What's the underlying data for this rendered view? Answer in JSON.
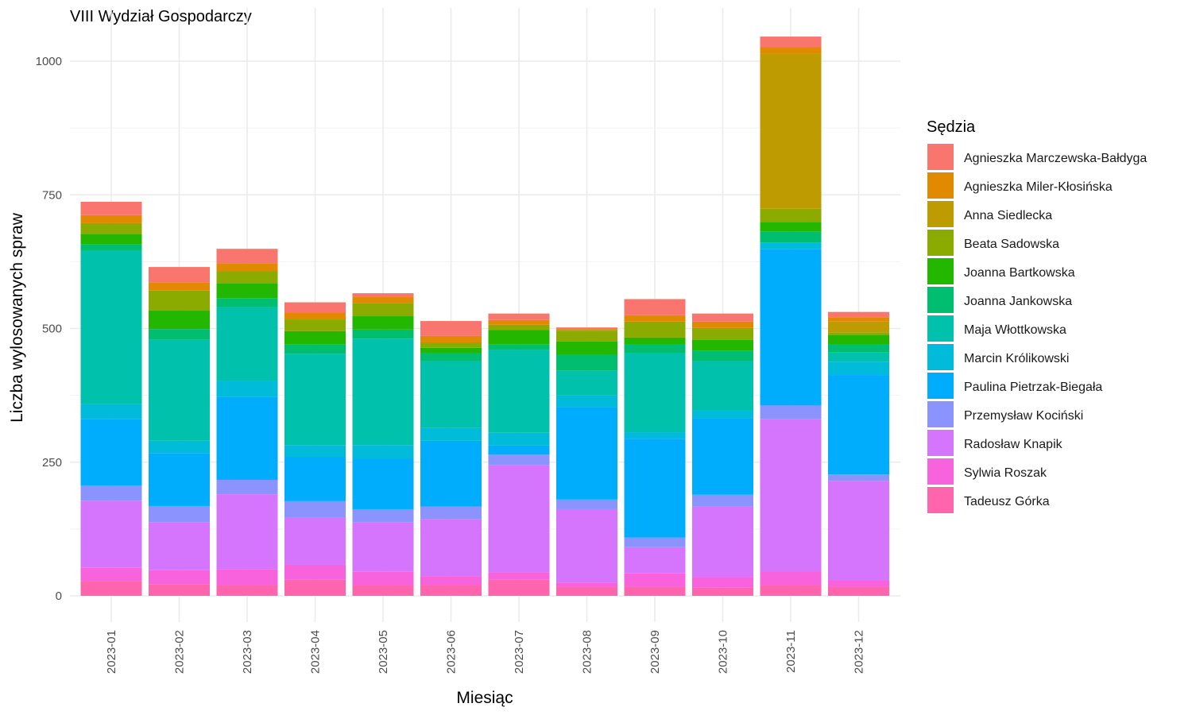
{
  "chart_data": {
    "type": "bar",
    "stacked": true,
    "title": "VIII Wydział Gospodarczy",
    "xlabel": "Miesiąc",
    "ylabel": "Liczba wylosowanych spraw",
    "ylim": [
      -40,
      1060
    ],
    "yticks": [
      0,
      250,
      500,
      750,
      1000
    ],
    "legend_title": "Sędzia",
    "legend_position": "right",
    "grid": true,
    "categories": [
      "2023-01",
      "2023-02",
      "2023-03",
      "2023-04",
      "2023-05",
      "2023-06",
      "2023-07",
      "2023-08",
      "2023-09",
      "2023-10",
      "2023-11",
      "2023-12"
    ],
    "series": [
      {
        "name": "Tadeusz Górka",
        "color": "#FF62BC",
        "values": [
          28,
          22,
          20,
          30,
          20,
          20,
          30,
          17,
          17,
          15,
          20,
          17
        ]
      },
      {
        "name": "Sylwia Roszak",
        "color": "#FC61D5",
        "values": [
          25,
          26,
          30,
          28,
          25,
          17,
          14,
          8,
          25,
          20,
          26,
          12
        ]
      },
      {
        "name": "Radosław Knapik",
        "color": "#DB72FB",
        "values": [
          125,
          90,
          140,
          89,
          92,
          106,
          200,
          137,
          49,
          132,
          285,
          186
        ]
      },
      {
        "name": "Przemysław Kociński",
        "color": "#93AA00",
        "values": [
          28,
          30,
          27,
          30,
          25,
          24,
          20,
          18,
          18,
          22,
          25,
          12
        ]
      },
      {
        "name": "Paulina Pietrzak-Biegała",
        "color": "#00A9FF",
        "values": [
          125,
          99,
          155,
          83,
          95,
          123,
          17,
          173,
          185,
          143,
          293,
          186
        ]
      },
      {
        "name": "Marcin Królikowski",
        "color": "#00BCD8",
        "values": [
          28,
          23,
          30,
          22,
          25,
          24,
          24,
          22,
          12,
          15,
          12,
          25
        ]
      },
      {
        "name": "Maja Włottkowska",
        "color": "#00C19A",
        "values": [
          286,
          189,
          138,
          171,
          199,
          125,
          155,
          46,
          148,
          92,
          0,
          17
        ]
      },
      {
        "name": "Joanna Jankowska",
        "color": "#00BE67",
        "values": [
          12,
          20,
          17,
          17,
          17,
          15,
          10,
          30,
          17,
          20,
          20,
          16
        ]
      },
      {
        "name": "Joanna Bartkowska",
        "color": "#39B600",
        "values": [
          20,
          35,
          28,
          25,
          25,
          10,
          27,
          25,
          12,
          20,
          18,
          17
        ]
      },
      {
        "name": "Beata Sadowska",
        "color": "#93AA00",
        "values": [
          20,
          37,
          22,
          22,
          25,
          10,
          10,
          20,
          30,
          22,
          25,
          5
        ]
      },
      {
        "name": "Anna Siedlecka",
        "color": "#C09B00",
        "values": [
          0,
          0,
          0,
          0,
          0,
          0,
          0,
          0,
          0,
          0,
          290,
          20
        ]
      },
      {
        "name": "Agnieszka Miler-Kłosińska",
        "color": "#E18A00",
        "values": [
          15,
          15,
          15,
          12,
          12,
          12,
          9,
          3,
          12,
          12,
          12,
          8
        ]
      },
      {
        "name": "Agnieszka Marczewska-Bałdyga",
        "color": "#F8766D",
        "values": [
          25,
          29,
          27,
          20,
          6,
          28,
          12,
          3,
          30,
          15,
          20,
          10
        ]
      }
    ],
    "legend_order": [
      "Agnieszka Marczewska-Bałdyga",
      "Agnieszka Miler-Kłosińska",
      "Anna Siedlecka",
      "Beata Sadowska",
      "Joanna Bartkowska",
      "Joanna Jankowska",
      "Maja Włottkowska",
      "Marcin Królikowski",
      "Paulina Pietrzak-Biegała",
      "Przemysław Kociński",
      "Radosław Knapik",
      "Sylwia Roszak",
      "Tadeusz Górka"
    ],
    "legend_colors": {
      "Agnieszka Marczewska-Bałdyga": "#F8766D",
      "Agnieszka Miler-Kłosińska": "#E18A00",
      "Anna Siedlecka": "#BE9C00",
      "Beata Sadowska": "#8CAB00",
      "Joanna Bartkowska": "#24B700",
      "Joanna Jankowska": "#00BE70",
      "Maja Włottkowska": "#00C1AB",
      "Marcin Królikowski": "#00BBDA",
      "Paulina Pietrzak-Biegała": "#00ACFC",
      "Przemysław Kociński": "#8B93FF",
      "Radosław Knapik": "#D575FE",
      "Sylwia Roszak": "#F962DD",
      "Tadeusz Górka": "#FF65AC"
    }
  }
}
